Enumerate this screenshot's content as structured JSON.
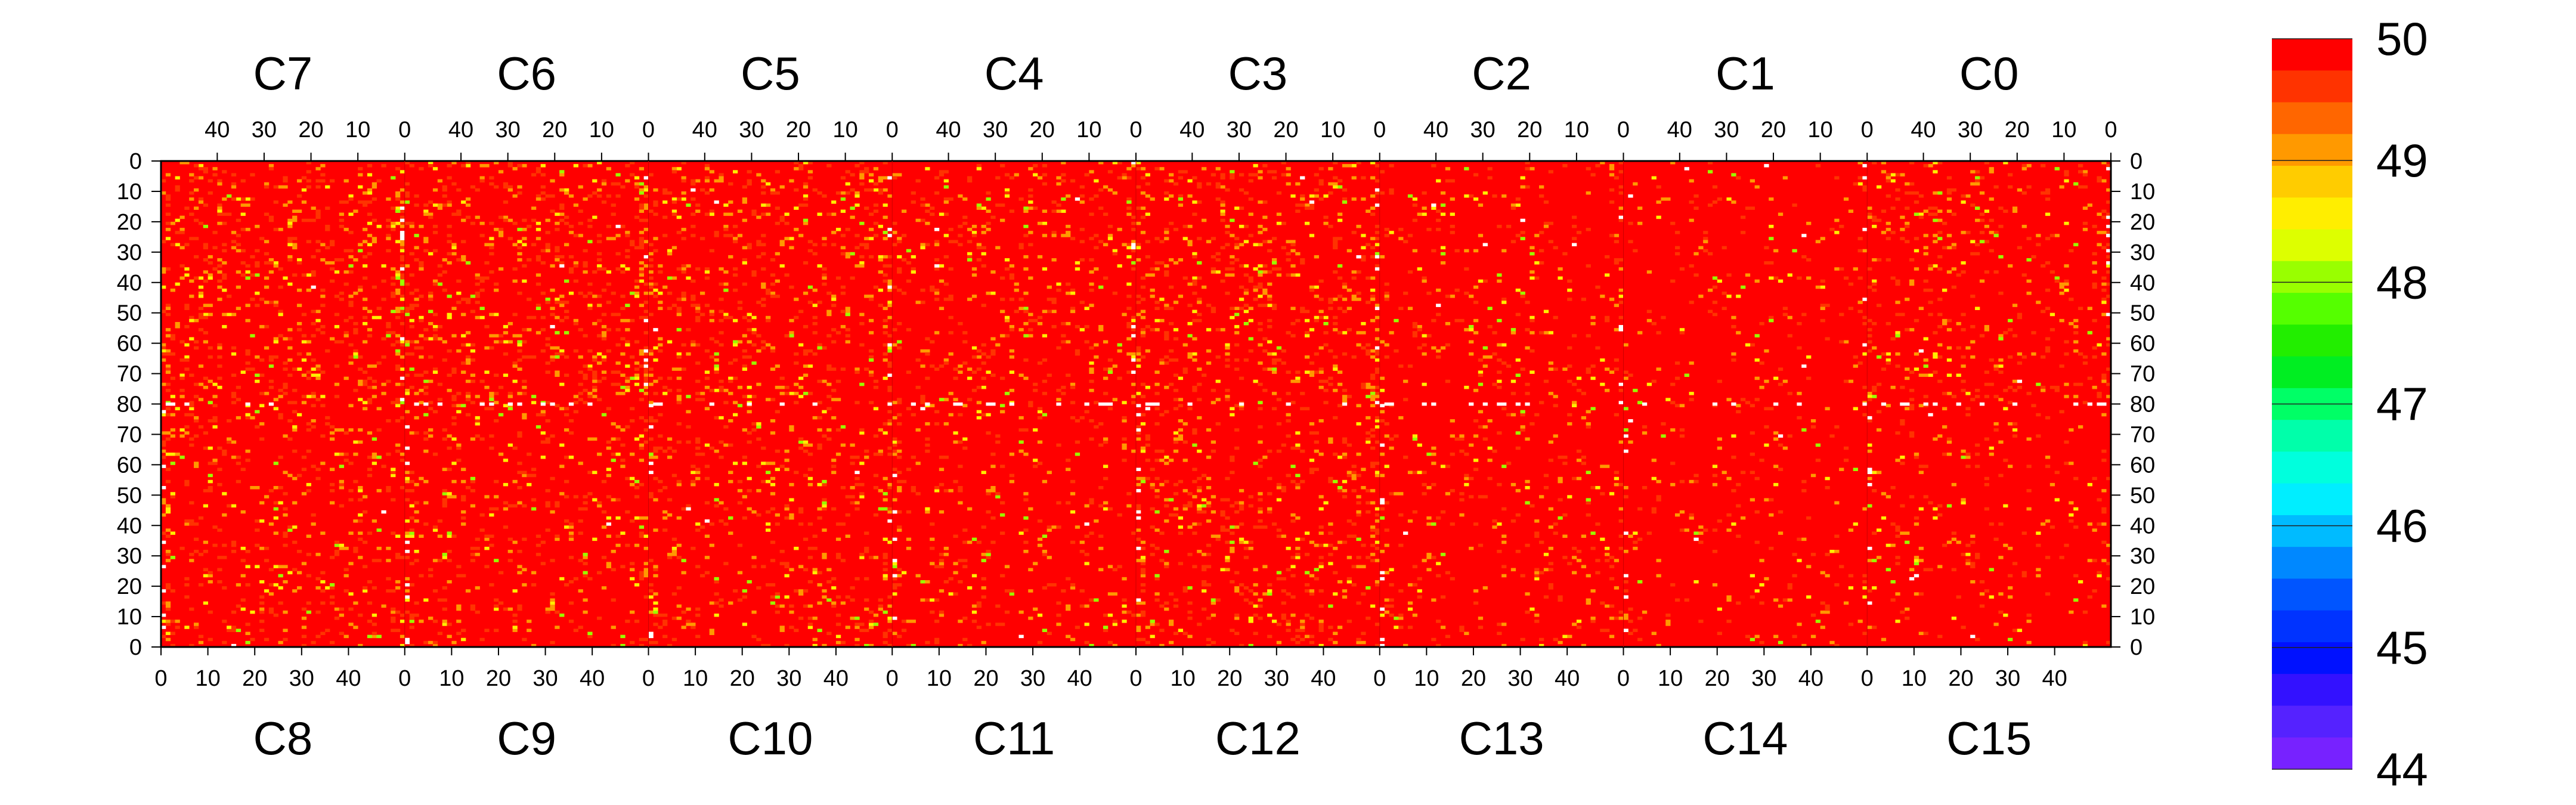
{
  "chart_data": {
    "type": "heatmap",
    "title": "",
    "xlabel": "",
    "ylabel": "",
    "colorbar": {
      "min": 44,
      "max": 50,
      "tick_labels": [
        "50",
        "49",
        "48",
        "47",
        "46",
        "45",
        "44"
      ],
      "tick_values": [
        50,
        49,
        48,
        47,
        46,
        45,
        44
      ],
      "colors": [
        "#ff0000",
        "#ff3300",
        "#ff6600",
        "#ff9900",
        "#ffcc00",
        "#ffee00",
        "#ddff00",
        "#99ff00",
        "#55ff00",
        "#22ee00",
        "#00ee22",
        "#00ff66",
        "#00ffaa",
        "#00ffdd",
        "#00eeff",
        "#00bbff",
        "#0088ff",
        "#0055ff",
        "#0033ff",
        "#0011ff",
        "#3311ff",
        "#5522ff",
        "#7722ff"
      ]
    },
    "top_chips": [
      "C7",
      "C6",
      "C5",
      "C4",
      "C3",
      "C2",
      "C1",
      "C0"
    ],
    "bottom_chips": [
      "C8",
      "C9",
      "C10",
      "C11",
      "C12",
      "C13",
      "C14",
      "C15"
    ],
    "top_x_tick_labels": [
      "40",
      "30",
      "20",
      "10",
      "0"
    ],
    "bottom_x_tick_labels": [
      "0",
      "10",
      "20",
      "30",
      "40"
    ],
    "y_tick_labels": [
      "0",
      "10",
      "20",
      "30",
      "40",
      "50",
      "60",
      "70",
      "80",
      "70",
      "60",
      "50",
      "40",
      "30",
      "20",
      "10",
      "0"
    ],
    "columns_per_chip": 52,
    "rows_per_half": 80,
    "dominant_value": 50,
    "typical_range": [
      48,
      50
    ],
    "missing_cells": "white"
  }
}
